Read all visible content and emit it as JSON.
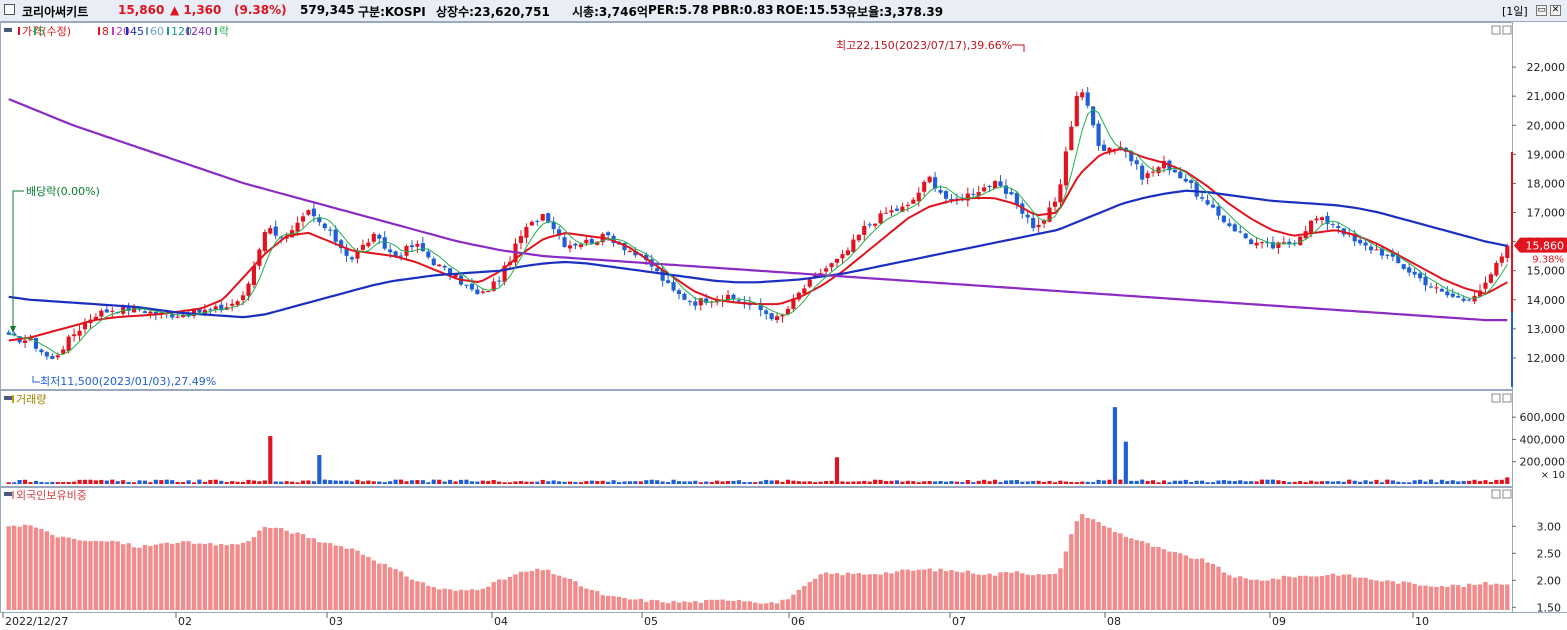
{
  "header": {
    "name": "코리아써키트",
    "price": "15,860",
    "change": "▲ 1,360",
    "change_pct": "(9.38%)",
    "volume": "579,345",
    "market": "구분:KOSPI",
    "shares": "상장수:23,620,751",
    "mcap": "시총:3,746억",
    "per": "PER:5.78",
    "pbr": "PBR:0.83",
    "roe": "ROE:15.53",
    "float": "유보율:3,378.39",
    "period": "[1일]"
  },
  "colors": {
    "up": "#e0141e",
    "down": "#1f5fd6",
    "ma5": "#22b14c",
    "ma20": "#e0141e",
    "ma45": "#c040c0",
    "ma60": "#1a2fbf",
    "ma120": "#1a9a8a",
    "ma240": "#8a2bc2",
    "foreign": "#f28b8b"
  },
  "price_panel": {
    "legend": [
      "가격(수정)",
      "5",
      "8",
      "20",
      "45",
      "60",
      "120",
      "240",
      "락"
    ],
    "y_ticks": [
      "22,000",
      "21,000",
      "20,000",
      "19,000",
      "18,000",
      "17,000",
      "16,000",
      "15,000",
      "14,000",
      "13,000",
      "12,000"
    ],
    "high_note": "최고22,150(2023/07/17),39.66%",
    "low_note": "최저11,500(2023/01/03),27.49%",
    "dividend_note": "배당락(0.00%)",
    "price_tag": "15,860",
    "pct_tag": "9.38%"
  },
  "volume_panel": {
    "legend": "거래량",
    "y_ticks": [
      "600,000",
      "400,000",
      "200,000"
    ],
    "unit": "× 10"
  },
  "foreign_panel": {
    "legend": "외국인보유비중",
    "y_ticks": [
      "3.00",
      "2.50",
      "2.00",
      "1.50"
    ]
  },
  "x_labels": [
    "2022/12/27",
    "02",
    "03",
    "04",
    "05",
    "06",
    "07",
    "08",
    "09",
    "10"
  ],
  "chart_data": {
    "type": "candlestick",
    "title": "코리아써키트",
    "x_labels": [
      "2022/12/27",
      "02",
      "03",
      "04",
      "05",
      "06",
      "07",
      "08",
      "09",
      "10"
    ],
    "price_range": [
      11000,
      23000
    ],
    "last_close": 15860,
    "high": {
      "value": 22150,
      "date": "2023/07/17"
    },
    "low": {
      "value": 11500,
      "date": "2023/01/03"
    },
    "close_anchors": [
      12700,
      12600,
      11900,
      12800,
      13500,
      13700,
      13700,
      13500,
      13500,
      13600,
      13700,
      14100,
      16500,
      16100,
      17000,
      16300,
      15400,
      16200,
      15500,
      15900,
      15200,
      14700,
      14100,
      14800,
      16300,
      17000,
      15900,
      16000,
      16200,
      15700,
      15200,
      14300,
      13900,
      14100,
      14000,
      13700,
      13300,
      14300,
      15000,
      15500,
      16500,
      17000,
      17200,
      18200,
      17300,
      17700,
      18000,
      17400,
      16400,
      17500,
      21500,
      19200,
      19300,
      18200,
      18700,
      18100,
      17200,
      16600,
      16000,
      15800,
      16000,
      16800,
      16600,
      15900,
      15700,
      15200,
      14700,
      14200,
      14000,
      14500,
      15860
    ],
    "ma": [
      {
        "name": "20",
        "values": [
          12600,
          12700,
          12900,
          13100,
          13300,
          13400,
          13450,
          13500,
          13600,
          13700,
          14000,
          14800,
          15600,
          16200,
          16300,
          16000,
          15700,
          15600,
          15500,
          15300,
          15000,
          14700,
          14600,
          15000,
          15600,
          16100,
          16300,
          16200,
          16100,
          15800,
          15300,
          14800,
          14300,
          14000,
          13900,
          13850,
          13850,
          14100,
          14500,
          15000,
          15600,
          16200,
          16800,
          17200,
          17400,
          17500,
          17500,
          17300,
          16900,
          17000,
          18300,
          19000,
          19200,
          18900,
          18700,
          18400,
          17900,
          17300,
          16800,
          16400,
          16200,
          16300,
          16400,
          16200,
          15900,
          15500,
          15100,
          14700,
          14400,
          14200,
          14600
        ]
      },
      {
        "name": "60",
        "values": [
          14100,
          14000,
          13950,
          13900,
          13850,
          13800,
          13750,
          13650,
          13550,
          13500,
          13450,
          13400,
          13500,
          13700,
          13900,
          14100,
          14300,
          14500,
          14650,
          14750,
          14850,
          14900,
          14950,
          15000,
          15150,
          15250,
          15300,
          15250,
          15150,
          15050,
          14950,
          14850,
          14750,
          14650,
          14600,
          14600,
          14650,
          14700,
          14800,
          14900,
          15050,
          15200,
          15350,
          15500,
          15650,
          15800,
          15950,
          16100,
          16250,
          16400,
          16700,
          17000,
          17300,
          17500,
          17650,
          17750,
          17700,
          17600,
          17500,
          17400,
          17350,
          17300,
          17250,
          17150,
          17000,
          16800,
          16600,
          16400,
          16200,
          16000,
          15850
        ]
      },
      {
        "name": "240",
        "values": [
          20900,
          20600,
          20300,
          20000,
          19750,
          19500,
          19250,
          19000,
          18750,
          18500,
          18250,
          18000,
          17800,
          17600,
          17400,
          17200,
          17000,
          16800,
          16600,
          16400,
          16200,
          16000,
          15850,
          15700,
          15600,
          15500,
          15450,
          15400,
          15350,
          15300,
          15250,
          15200,
          15150,
          15100,
          15050,
          15000,
          14950,
          14900,
          14850,
          14800,
          14750,
          14700,
          14650,
          14600,
          14550,
          14500,
          14450,
          14400,
          14350,
          14300,
          14250,
          14200,
          14150,
          14100,
          14050,
          14000,
          13950,
          13900,
          13850,
          13800,
          13750,
          13700,
          13650,
          13600,
          13550,
          13500,
          13450,
          13400,
          13350,
          13300,
          13300
        ]
      }
    ],
    "volume_range": [
      0,
      700000
    ],
    "volume_max": 700000,
    "foreign_ratio_range": [
      1.45,
      3.45
    ],
    "foreign_ratio_anchors": [
      3.02,
      3.02,
      2.85,
      2.75,
      2.72,
      2.72,
      2.62,
      2.66,
      2.72,
      2.66,
      2.66,
      2.68,
      3.0,
      2.92,
      2.8,
      2.66,
      2.6,
      2.4,
      2.2,
      2.0,
      1.85,
      1.8,
      1.85,
      2.0,
      2.15,
      2.2,
      2.05,
      1.85,
      1.7,
      1.65,
      1.62,
      1.6,
      1.6,
      1.62,
      1.65,
      1.6,
      1.58,
      1.82,
      2.12,
      2.12,
      2.12,
      2.14,
      2.18,
      2.2,
      2.18,
      2.15,
      2.1,
      2.18,
      2.1,
      2.1,
      3.25,
      3.05,
      2.85,
      2.7,
      2.55,
      2.45,
      2.35,
      2.1,
      2.0,
      2.02,
      2.08,
      2.08,
      2.12,
      2.06,
      2.0,
      1.96,
      1.92,
      1.9,
      1.9,
      1.94,
      1.94
    ]
  }
}
